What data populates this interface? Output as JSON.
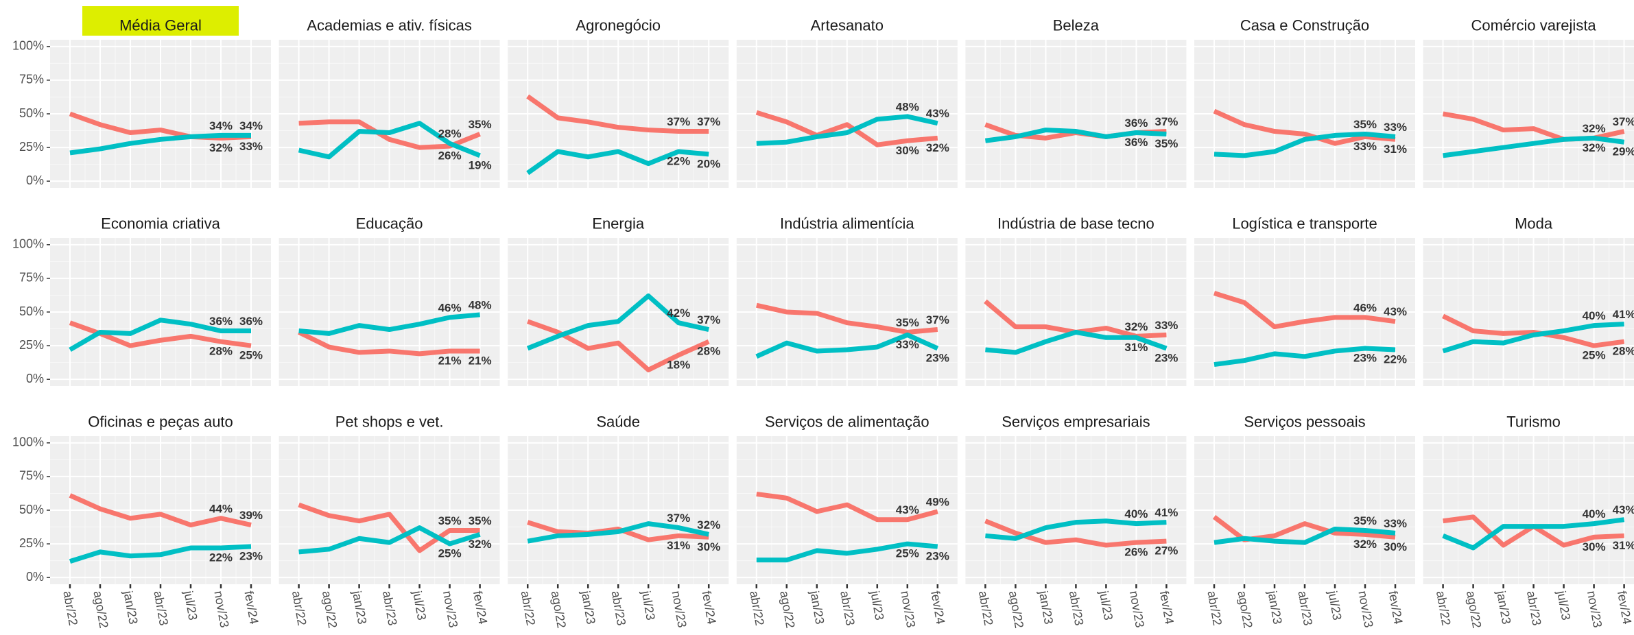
{
  "axes": {
    "categories": [
      "abr/22",
      "ago/22",
      "jan/23",
      "abr/23",
      "jul/23",
      "nov/23",
      "fev/24"
    ],
    "ylim": [
      -5,
      105
    ],
    "yticks": [
      {
        "value": 0,
        "label": "0%"
      },
      {
        "value": 25,
        "label": "25%"
      },
      {
        "value": 50,
        "label": "50%"
      },
      {
        "value": 75,
        "label": "75%"
      },
      {
        "value": 100,
        "label": "100%"
      }
    ],
    "grid": true
  },
  "chart_data": [
    {
      "type": "line",
      "title": "Média Geral",
      "strip_color": "#DDEE00",
      "series": [
        {
          "color": "#F8766D",
          "values": [
            50,
            42,
            36,
            38,
            33,
            32,
            33
          ],
          "value_labels": [
            null,
            null,
            null,
            null,
            null,
            "32%",
            "33%"
          ]
        },
        {
          "color": "#00BFC4",
          "values": [
            21,
            24,
            28,
            31,
            33,
            34,
            34
          ],
          "value_labels": [
            null,
            null,
            null,
            null,
            null,
            "34%",
            "34%"
          ]
        }
      ]
    },
    {
      "type": "line",
      "title": "Academias e ativ. físicas",
      "series": [
        {
          "color": "#F8766D",
          "values": [
            43,
            44,
            44,
            31,
            25,
            26,
            35
          ],
          "value_labels": [
            null,
            null,
            null,
            null,
            null,
            "26%",
            "35%"
          ]
        },
        {
          "color": "#00BFC4",
          "values": [
            23,
            18,
            37,
            36,
            43,
            28,
            19
          ],
          "value_labels": [
            null,
            null,
            null,
            null,
            null,
            "28%",
            "19%"
          ]
        }
      ]
    },
    {
      "type": "line",
      "title": "Agronegócio",
      "series": [
        {
          "color": "#F8766D",
          "values": [
            63,
            47,
            44,
            40,
            38,
            37,
            37
          ],
          "value_labels": [
            null,
            null,
            null,
            null,
            null,
            "37%",
            "37%"
          ]
        },
        {
          "color": "#00BFC4",
          "values": [
            6,
            22,
            18,
            22,
            13,
            22,
            20
          ],
          "value_labels": [
            null,
            null,
            null,
            null,
            null,
            "22%",
            "20%"
          ]
        }
      ]
    },
    {
      "type": "line",
      "title": "Artesanato",
      "series": [
        {
          "color": "#F8766D",
          "values": [
            51,
            44,
            34,
            42,
            27,
            30,
            32
          ],
          "value_labels": [
            null,
            null,
            null,
            null,
            null,
            "30%",
            "32%"
          ]
        },
        {
          "color": "#00BFC4",
          "values": [
            28,
            29,
            33,
            36,
            46,
            48,
            43
          ],
          "value_labels": [
            null,
            null,
            null,
            null,
            null,
            "48%",
            "43%"
          ]
        }
      ]
    },
    {
      "type": "line",
      "title": "Beleza",
      "series": [
        {
          "color": "#F8766D",
          "values": [
            42,
            34,
            32,
            36,
            33,
            36,
            37
          ],
          "value_labels": [
            null,
            null,
            null,
            null,
            null,
            "36%",
            "37%"
          ]
        },
        {
          "color": "#00BFC4",
          "values": [
            30,
            33,
            38,
            37,
            33,
            36,
            35
          ],
          "value_labels": [
            null,
            null,
            null,
            null,
            null,
            "36%",
            "35%"
          ]
        }
      ]
    },
    {
      "type": "line",
      "title": "Casa e Construção",
      "series": [
        {
          "color": "#F8766D",
          "values": [
            52,
            42,
            37,
            35,
            28,
            33,
            31
          ],
          "value_labels": [
            null,
            null,
            null,
            null,
            null,
            "33%",
            "31%"
          ]
        },
        {
          "color": "#00BFC4",
          "values": [
            20,
            19,
            22,
            31,
            34,
            35,
            33
          ],
          "value_labels": [
            null,
            null,
            null,
            null,
            null,
            "35%",
            "33%"
          ]
        }
      ]
    },
    {
      "type": "line",
      "title": "Comércio varejista",
      "series": [
        {
          "color": "#F8766D",
          "values": [
            50,
            46,
            38,
            39,
            31,
            32,
            37
          ],
          "value_labels": [
            null,
            null,
            null,
            null,
            null,
            "32%",
            "37%"
          ]
        },
        {
          "color": "#00BFC4",
          "values": [
            19,
            22,
            25,
            28,
            31,
            32,
            29
          ],
          "value_labels": [
            null,
            null,
            null,
            null,
            null,
            "32%",
            "29%"
          ]
        }
      ]
    },
    {
      "type": "line",
      "title": "Economia criativa",
      "series": [
        {
          "color": "#F8766D",
          "values": [
            42,
            34,
            25,
            29,
            32,
            28,
            25
          ],
          "value_labels": [
            null,
            null,
            null,
            null,
            null,
            "28%",
            "25%"
          ]
        },
        {
          "color": "#00BFC4",
          "values": [
            22,
            35,
            34,
            44,
            41,
            36,
            36
          ],
          "value_labels": [
            null,
            null,
            null,
            null,
            null,
            "36%",
            "36%"
          ]
        }
      ]
    },
    {
      "type": "line",
      "title": "Educação",
      "series": [
        {
          "color": "#F8766D",
          "values": [
            35,
            24,
            20,
            21,
            19,
            21,
            21
          ],
          "value_labels": [
            null,
            null,
            null,
            null,
            null,
            "21%",
            "21%"
          ]
        },
        {
          "color": "#00BFC4",
          "values": [
            36,
            34,
            40,
            37,
            41,
            46,
            48
          ],
          "value_labels": [
            null,
            null,
            null,
            null,
            null,
            "46%",
            "48%"
          ]
        }
      ]
    },
    {
      "type": "line",
      "title": "Energia",
      "series": [
        {
          "color": "#F8766D",
          "values": [
            43,
            35,
            23,
            27,
            7,
            18,
            28
          ],
          "value_labels": [
            null,
            null,
            null,
            null,
            null,
            "18%",
            "28%"
          ]
        },
        {
          "color": "#00BFC4",
          "values": [
            23,
            32,
            40,
            43,
            62,
            42,
            37
          ],
          "value_labels": [
            null,
            null,
            null,
            null,
            null,
            "42%",
            "37%"
          ]
        }
      ]
    },
    {
      "type": "line",
      "title": "Indústria alimentícia",
      "series": [
        {
          "color": "#F8766D",
          "values": [
            55,
            50,
            49,
            42,
            39,
            35,
            37
          ],
          "value_labels": [
            null,
            null,
            null,
            null,
            null,
            "35%",
            "37%"
          ]
        },
        {
          "color": "#00BFC4",
          "values": [
            17,
            27,
            21,
            22,
            24,
            33,
            23
          ],
          "value_labels": [
            null,
            null,
            null,
            null,
            null,
            "33%",
            "23%"
          ]
        }
      ]
    },
    {
      "type": "line",
      "title": "Indústria de base tecno",
      "series": [
        {
          "color": "#F8766D",
          "values": [
            58,
            39,
            39,
            35,
            38,
            32,
            33
          ],
          "value_labels": [
            null,
            null,
            null,
            null,
            null,
            "32%",
            "33%"
          ]
        },
        {
          "color": "#00BFC4",
          "values": [
            22,
            20,
            28,
            35,
            31,
            31,
            23
          ],
          "value_labels": [
            null,
            null,
            null,
            null,
            null,
            "31%",
            "23%"
          ]
        }
      ]
    },
    {
      "type": "line",
      "title": "Logística e transporte",
      "series": [
        {
          "color": "#F8766D",
          "values": [
            64,
            57,
            39,
            43,
            46,
            46,
            43
          ],
          "value_labels": [
            null,
            null,
            null,
            null,
            null,
            "46%",
            "43%"
          ]
        },
        {
          "color": "#00BFC4",
          "values": [
            11,
            14,
            19,
            17,
            21,
            23,
            22
          ],
          "value_labels": [
            null,
            null,
            null,
            null,
            null,
            "23%",
            "22%"
          ]
        }
      ]
    },
    {
      "type": "line",
      "title": "Moda",
      "series": [
        {
          "color": "#F8766D",
          "values": [
            47,
            36,
            34,
            35,
            31,
            25,
            28
          ],
          "value_labels": [
            null,
            null,
            null,
            null,
            null,
            "25%",
            "28%"
          ]
        },
        {
          "color": "#00BFC4",
          "values": [
            21,
            28,
            27,
            33,
            36,
            40,
            41
          ],
          "value_labels": [
            null,
            null,
            null,
            null,
            null,
            "40%",
            "41%"
          ]
        }
      ]
    },
    {
      "type": "line",
      "title": "Oficinas e peças auto",
      "series": [
        {
          "color": "#F8766D",
          "values": [
            61,
            51,
            44,
            47,
            39,
            44,
            39
          ],
          "value_labels": [
            null,
            null,
            null,
            null,
            null,
            "44%",
            "39%"
          ]
        },
        {
          "color": "#00BFC4",
          "values": [
            12,
            19,
            16,
            17,
            22,
            22,
            23
          ],
          "value_labels": [
            null,
            null,
            null,
            null,
            null,
            "22%",
            "23%"
          ]
        }
      ]
    },
    {
      "type": "line",
      "title": "Pet shops e vet.",
      "series": [
        {
          "color": "#F8766D",
          "values": [
            54,
            46,
            42,
            47,
            20,
            35,
            35
          ],
          "value_labels": [
            null,
            null,
            null,
            null,
            null,
            "35%",
            "35%"
          ]
        },
        {
          "color": "#00BFC4",
          "values": [
            19,
            21,
            29,
            26,
            37,
            25,
            32
          ],
          "value_labels": [
            null,
            null,
            null,
            null,
            null,
            "25%",
            "32%"
          ]
        }
      ]
    },
    {
      "type": "line",
      "title": "Saúde",
      "series": [
        {
          "color": "#F8766D",
          "values": [
            41,
            34,
            33,
            36,
            28,
            31,
            30
          ],
          "value_labels": [
            null,
            null,
            null,
            null,
            null,
            "31%",
            "30%"
          ]
        },
        {
          "color": "#00BFC4",
          "values": [
            27,
            31,
            32,
            34,
            40,
            37,
            32
          ],
          "value_labels": [
            null,
            null,
            null,
            null,
            null,
            "37%",
            "32%"
          ]
        }
      ]
    },
    {
      "type": "line",
      "title": "Serviços de alimentação",
      "series": [
        {
          "color": "#F8766D",
          "values": [
            62,
            59,
            49,
            54,
            43,
            43,
            49
          ],
          "value_labels": [
            null,
            null,
            null,
            null,
            null,
            "43%",
            "49%"
          ]
        },
        {
          "color": "#00BFC4",
          "values": [
            13,
            13,
            20,
            18,
            21,
            25,
            23
          ],
          "value_labels": [
            null,
            null,
            null,
            null,
            null,
            "25%",
            "23%"
          ]
        }
      ]
    },
    {
      "type": "line",
      "title": "Serviços empresariais",
      "series": [
        {
          "color": "#F8766D",
          "values": [
            42,
            33,
            26,
            28,
            24,
            26,
            27
          ],
          "value_labels": [
            null,
            null,
            null,
            null,
            null,
            "26%",
            "27%"
          ]
        },
        {
          "color": "#00BFC4",
          "values": [
            31,
            29,
            37,
            41,
            42,
            40,
            41
          ],
          "value_labels": [
            null,
            null,
            null,
            null,
            null,
            "40%",
            "41%"
          ]
        }
      ]
    },
    {
      "type": "line",
      "title": "Serviços pessoais",
      "series": [
        {
          "color": "#F8766D",
          "values": [
            45,
            28,
            31,
            40,
            33,
            32,
            30
          ],
          "value_labels": [
            null,
            null,
            null,
            null,
            null,
            "32%",
            "30%"
          ]
        },
        {
          "color": "#00BFC4",
          "values": [
            26,
            29,
            27,
            26,
            36,
            35,
            33
          ],
          "value_labels": [
            null,
            null,
            null,
            null,
            null,
            "35%",
            "33%"
          ]
        }
      ]
    },
    {
      "type": "line",
      "title": "Turismo",
      "series": [
        {
          "color": "#F8766D",
          "values": [
            42,
            45,
            24,
            38,
            24,
            30,
            31
          ],
          "value_labels": [
            null,
            null,
            null,
            null,
            null,
            "30%",
            "31%"
          ]
        },
        {
          "color": "#00BFC4",
          "values": [
            31,
            22,
            38,
            38,
            38,
            40,
            43
          ],
          "value_labels": [
            null,
            null,
            null,
            null,
            null,
            "40%",
            "43%"
          ]
        }
      ]
    }
  ]
}
